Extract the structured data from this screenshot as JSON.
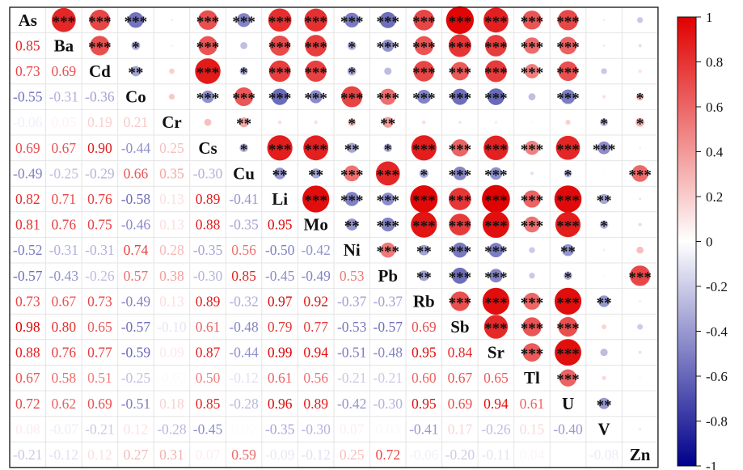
{
  "chart_data": {
    "type": "heatmap",
    "title": "",
    "variables": [
      "As",
      "Ba",
      "Cd",
      "Co",
      "Cr",
      "Cs",
      "Cu",
      "Li",
      "Mo",
      "Ni",
      "Pb",
      "Rb",
      "Sb",
      "Sr",
      "Tl",
      "U",
      "V",
      "Zn"
    ],
    "lower_triangle_rows": [
      [],
      [
        0.85
      ],
      [
        0.73,
        0.69
      ],
      [
        -0.55,
        -0.31,
        -0.36
      ],
      [
        -0.06,
        0.05,
        0.19,
        0.21
      ],
      [
        0.69,
        0.67,
        0.9,
        -0.44,
        0.25
      ],
      [
        -0.49,
        -0.25,
        -0.29,
        0.66,
        0.35,
        -0.3
      ],
      [
        0.82,
        0.71,
        0.76,
        -0.58,
        0.13,
        0.89,
        -0.41
      ],
      [
        0.81,
        0.76,
        0.75,
        -0.46,
        0.13,
        0.88,
        -0.35,
        0.95
      ],
      [
        -0.52,
        -0.31,
        -0.31,
        0.74,
        0.28,
        -0.35,
        0.56,
        -0.5,
        -0.42
      ],
      [
        -0.57,
        -0.43,
        -0.26,
        0.57,
        0.38,
        -0.3,
        0.85,
        -0.45,
        -0.49,
        0.53
      ],
      [
        0.73,
        0.67,
        0.73,
        -0.49,
        0.13,
        0.89,
        -0.32,
        0.97,
        0.92,
        -0.37,
        -0.37
      ],
      [
        0.98,
        0.8,
        0.65,
        -0.57,
        -0.1,
        0.61,
        -0.48,
        0.79,
        0.77,
        -0.53,
        -0.57,
        0.69
      ],
      [
        0.88,
        0.76,
        0.77,
        -0.59,
        0.09,
        0.87,
        -0.44,
        0.99,
        0.94,
        -0.51,
        -0.48,
        0.95,
        0.84
      ],
      [
        0.67,
        0.58,
        0.51,
        -0.25,
        -0.02,
        0.5,
        -0.12,
        0.61,
        0.56,
        -0.21,
        -0.21,
        0.6,
        0.67,
        0.65
      ],
      [
        0.72,
        0.62,
        0.69,
        -0.51,
        0.18,
        0.85,
        -0.28,
        0.96,
        0.89,
        -0.42,
        -0.3,
        0.95,
        0.69,
        0.94,
        0.61
      ],
      [
        0.08,
        -0.07,
        -0.21,
        0.12,
        -0.28,
        -0.45,
        0.02,
        -0.35,
        -0.3,
        0.07,
        0.03,
        -0.41,
        0.17,
        -0.26,
        0.15,
        -0.4
      ],
      [
        -0.21,
        -0.12,
        0.12,
        0.27,
        0.31,
        0.07,
        0.59,
        -0.09,
        -0.12,
        0.25,
        0.72,
        -0.06,
        -0.2,
        -0.11,
        0.04,
        0.0,
        -0.08
      ]
    ],
    "upper_triangle_significance": [
      [
        "",
        "***",
        "***",
        "***",
        "",
        "***",
        "***",
        "***",
        "***",
        "***",
        "***",
        "***",
        "***",
        "***",
        "***",
        "***",
        "",
        ""
      ],
      [
        "",
        "",
        "***",
        "*",
        "",
        "***",
        "",
        "***",
        "***",
        "*",
        "***",
        "***",
        "***",
        "***",
        "***",
        "***",
        "",
        ""
      ],
      [
        "",
        "",
        "",
        "**",
        "",
        "***",
        "*",
        "***",
        "***",
        "*",
        "",
        "***",
        "***",
        "***",
        "***",
        "***",
        "",
        ""
      ],
      [
        "",
        "",
        "",
        "",
        "",
        "***",
        "***",
        "***",
        "***",
        "***",
        "***",
        "***",
        "***",
        "***",
        "",
        "***",
        "",
        "*"
      ],
      [
        "",
        "",
        "",
        "",
        "",
        "",
        "**",
        "",
        "",
        "*",
        "**",
        "",
        "",
        "",
        "",
        "",
        "*",
        "*"
      ],
      [
        "",
        "",
        "",
        "",
        "",
        "",
        "*",
        "***",
        "***",
        "**",
        "*",
        "***",
        "***",
        "***",
        "***",
        "***",
        "***",
        ""
      ],
      [
        "",
        "",
        "",
        "",
        "",
        "",
        "",
        "**",
        "**",
        "***",
        "***",
        "*",
        "***",
        "***",
        "",
        "*",
        "",
        "***"
      ],
      [
        "",
        "",
        "",
        "",
        "",
        "",
        "",
        "",
        "***",
        "***",
        "***",
        "***",
        "***",
        "***",
        "***",
        "***",
        "**",
        ""
      ],
      [
        "",
        "",
        "",
        "",
        "",
        "",
        "",
        "",
        "",
        "**",
        "***",
        "***",
        "***",
        "***",
        "***",
        "***",
        "*",
        ""
      ],
      [
        "",
        "",
        "",
        "",
        "",
        "",
        "",
        "",
        "",
        "",
        "***",
        "**",
        "***",
        "***",
        "",
        "**",
        "",
        ""
      ],
      [
        "",
        "",
        "",
        "",
        "",
        "",
        "",
        "",
        "",
        "",
        "",
        "**",
        "***",
        "***",
        "",
        "*",
        "",
        "***"
      ],
      [
        "",
        "",
        "",
        "",
        "",
        "",
        "",
        "",
        "",
        "",
        "",
        "",
        "***",
        "***",
        "***",
        "***",
        "**",
        ""
      ],
      [
        "",
        "",
        "",
        "",
        "",
        "",
        "",
        "",
        "",
        "",
        "",
        "",
        "",
        "***",
        "***",
        "***",
        "",
        ""
      ],
      [
        "",
        "",
        "",
        "",
        "",
        "",
        "",
        "",
        "",
        "",
        "",
        "",
        "",
        "",
        "***",
        "***",
        "",
        ""
      ],
      [
        "",
        "",
        "",
        "",
        "",
        "",
        "",
        "",
        "",
        "",
        "",
        "",
        "",
        "",
        "",
        "***",
        "",
        ""
      ],
      [
        "",
        "",
        "",
        "",
        "",
        "",
        "",
        "",
        "",
        "",
        "",
        "",
        "",
        "",
        "",
        "",
        "**",
        ""
      ],
      [
        "",
        "",
        "",
        "",
        "",
        "",
        "",
        "",
        "",
        "",
        "",
        "",
        "",
        "",
        "",
        "",
        "",
        ""
      ],
      [
        "",
        "",
        "",
        "",
        "",
        "",
        "",
        "",
        "",
        "",
        "",
        "",
        "",
        "",
        "",
        "",
        "",
        ""
      ]
    ],
    "colorbar": {
      "min": -1,
      "max": 1,
      "ticks": [
        "1",
        "0.8",
        "0.6",
        "0.4",
        "0.2",
        "0",
        "-0.2",
        "-0.4",
        "-0.6",
        "-0.8",
        "-1"
      ],
      "colors": {
        "negative": "#00008b",
        "zero": "#ffffff",
        "positive": "#e00000"
      }
    },
    "grid": true,
    "legend": "right"
  }
}
